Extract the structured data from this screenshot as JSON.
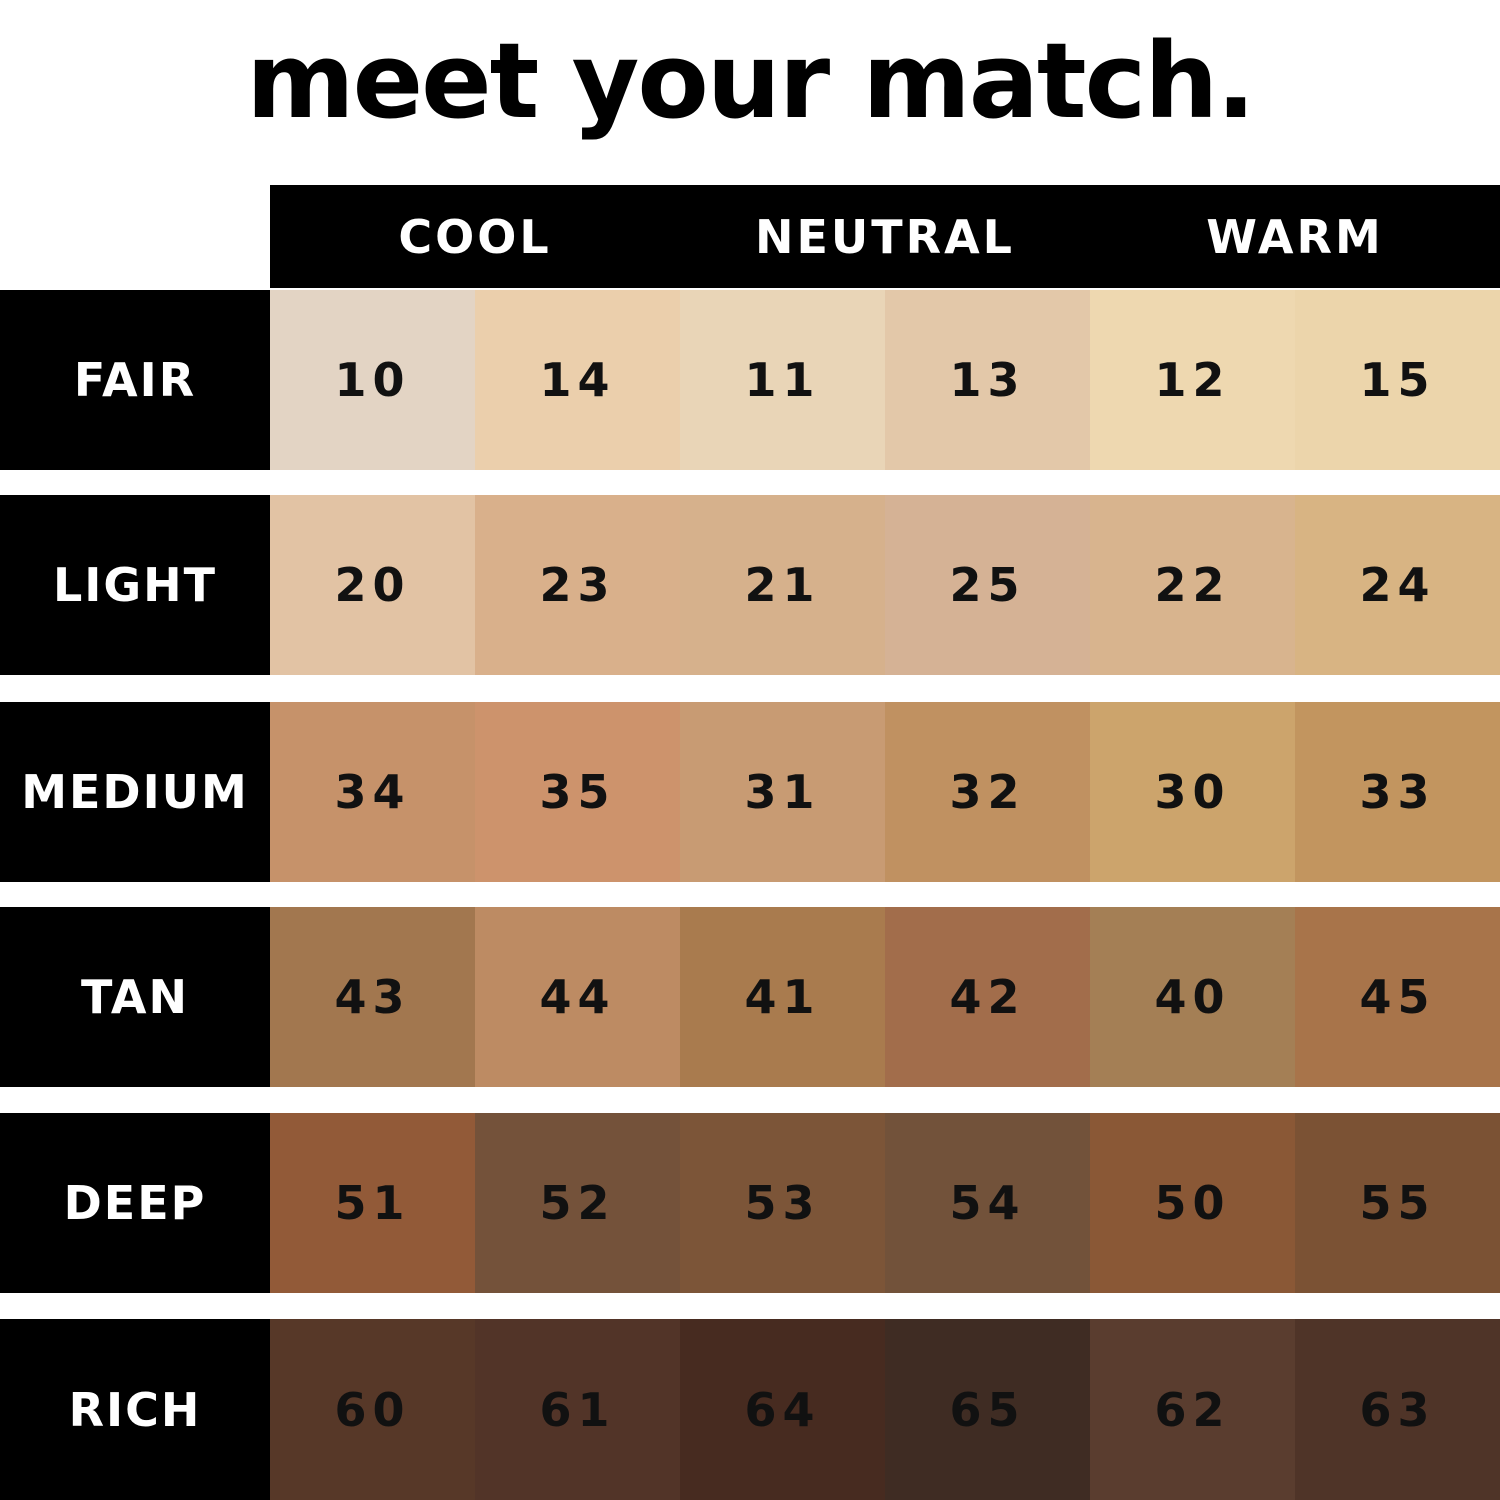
{
  "title": "meet your match.",
  "columns": [
    "COOL",
    "NEUTRAL",
    "WARM"
  ],
  "rows": [
    {
      "label": "FAIR",
      "shades": [
        {
          "code": "10",
          "color": "#e3d4c4"
        },
        {
          "code": "14",
          "color": "#ebcfac"
        },
        {
          "code": "11",
          "color": "#e9d5b7"
        },
        {
          "code": "13",
          "color": "#e3c8a9"
        },
        {
          "code": "12",
          "color": "#eed8b0"
        },
        {
          "code": "15",
          "color": "#ecd5ab"
        }
      ]
    },
    {
      "label": "LIGHT",
      "shades": [
        {
          "code": "20",
          "color": "#e2c3a4"
        },
        {
          "code": "23",
          "color": "#d9b08b"
        },
        {
          "code": "21",
          "color": "#d6b18c"
        },
        {
          "code": "25",
          "color": "#d5b295"
        },
        {
          "code": "22",
          "color": "#d8b48e"
        },
        {
          "code": "24",
          "color": "#d8b483"
        }
      ]
    },
    {
      "label": "MEDIUM",
      "shades": [
        {
          "code": "34",
          "color": "#c6926a"
        },
        {
          "code": "35",
          "color": "#cd936c"
        },
        {
          "code": "31",
          "color": "#c89b73"
        },
        {
          "code": "32",
          "color": "#c09161"
        },
        {
          "code": "30",
          "color": "#cca46c"
        },
        {
          "code": "33",
          "color": "#c2955f"
        }
      ]
    },
    {
      "label": "TAN",
      "shades": [
        {
          "code": "43",
          "color": "#a2774f"
        },
        {
          "code": "44",
          "color": "#bd8b63"
        },
        {
          "code": "41",
          "color": "#a97b4e"
        },
        {
          "code": "42",
          "color": "#a26d4b"
        },
        {
          "code": "40",
          "color": "#a47f55"
        },
        {
          "code": "45",
          "color": "#a8744a"
        }
      ]
    },
    {
      "label": "DEEP",
      "shades": [
        {
          "code": "51",
          "color": "#925a38"
        },
        {
          "code": "52",
          "color": "#74523a"
        },
        {
          "code": "53",
          "color": "#7c5538"
        },
        {
          "code": "54",
          "color": "#72523a"
        },
        {
          "code": "50",
          "color": "#8a5836"
        },
        {
          "code": "55",
          "color": "#7b5234"
        }
      ]
    },
    {
      "label": "RICH",
      "shades": [
        {
          "code": "60",
          "color": "#573828"
        },
        {
          "code": "61",
          "color": "#523428"
        },
        {
          "code": "64",
          "color": "#472b20"
        },
        {
          "code": "65",
          "color": "#3f2c23"
        },
        {
          "code": "62",
          "color": "#5a3d2f"
        },
        {
          "code": "63",
          "color": "#4f3428"
        }
      ]
    }
  ]
}
